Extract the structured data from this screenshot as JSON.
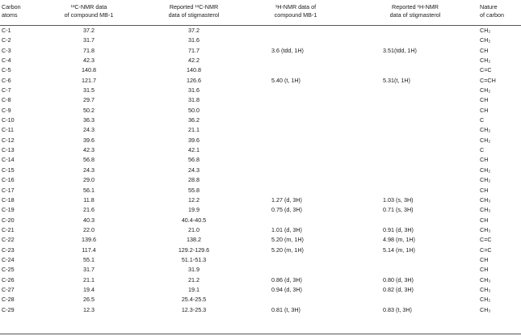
{
  "headers": {
    "col1": [
      "Carbon",
      "atoms"
    ],
    "col2": [
      "¹³C-NMR data",
      "of compound MB-1"
    ],
    "col3": [
      "Reported ¹³C-NMR",
      "data of stigmasterol"
    ],
    "col4": [
      "¹H-NMR data of",
      "compound MB-1"
    ],
    "col5": [
      "Reported ¹H-NMR",
      "data of stigmasterol"
    ],
    "col6": [
      "Nature",
      "of carbon"
    ]
  },
  "rows": [
    {
      "atom": "C-1",
      "mb13": "37.2",
      "rep13": "37.2",
      "mb1h": "",
      "rep1h": "",
      "nat": "CH₂"
    },
    {
      "atom": "C-2",
      "mb13": "31.7",
      "rep13": "31.6",
      "mb1h": "",
      "rep1h": "",
      "nat": "CH₂"
    },
    {
      "atom": "C-3",
      "mb13": "71.8",
      "rep13": "71.7",
      "mb1h": "3.6 (tdd, 1H)",
      "rep1h": "3.51(tdd, 1H)",
      "nat": "CH"
    },
    {
      "atom": "C-4",
      "mb13": "42.3",
      "rep13": "42.2",
      "mb1h": "",
      "rep1h": "",
      "nat": "CH₂"
    },
    {
      "atom": "C-5",
      "mb13": "140.8",
      "rep13": "140.8",
      "mb1h": "",
      "rep1h": "",
      "nat": "C=C"
    },
    {
      "atom": "C-6",
      "mb13": "121.7",
      "rep13": "126.6",
      "mb1h": "5.40 (t, 1H)",
      "rep1h": "5.31(t, 1H)",
      "nat": "C=CH"
    },
    {
      "atom": "C-7",
      "mb13": "31.5",
      "rep13": "31.6",
      "mb1h": "",
      "rep1h": "",
      "nat": "CH₂"
    },
    {
      "atom": "C-8",
      "mb13": "29.7",
      "rep13": "31.8",
      "mb1h": "",
      "rep1h": "",
      "nat": "CH"
    },
    {
      "atom": "C-9",
      "mb13": "50.2",
      "rep13": "50.0",
      "mb1h": "",
      "rep1h": "",
      "nat": "CH"
    },
    {
      "atom": "C-10",
      "mb13": "36.3",
      "rep13": "36.2",
      "mb1h": "",
      "rep1h": "",
      "nat": "C"
    },
    {
      "atom": "C-11",
      "mb13": "24.3",
      "rep13": "21.1",
      "mb1h": "",
      "rep1h": "",
      "nat": "CH₂"
    },
    {
      "atom": "C-12",
      "mb13": "39.6",
      "rep13": "39.6",
      "mb1h": "",
      "rep1h": "",
      "nat": "CH₂"
    },
    {
      "atom": "C-13",
      "mb13": "42.3",
      "rep13": "42.1",
      "mb1h": "",
      "rep1h": "",
      "nat": "C"
    },
    {
      "atom": "C-14",
      "mb13": "56.8",
      "rep13": "56.8",
      "mb1h": "",
      "rep1h": "",
      "nat": "CH"
    },
    {
      "atom": "C-15",
      "mb13": "24.3",
      "rep13": "24.3",
      "mb1h": "",
      "rep1h": "",
      "nat": "CH₂"
    },
    {
      "atom": "C-16",
      "mb13": "29.0",
      "rep13": "28.8",
      "mb1h": "",
      "rep1h": "",
      "nat": "CH₂"
    },
    {
      "atom": "C-17",
      "mb13": "56.1",
      "rep13": "55.8",
      "mb1h": "",
      "rep1h": "",
      "nat": "CH"
    },
    {
      "atom": "C-18",
      "mb13": "11.8",
      "rep13": "12.2",
      "mb1h": "1.27 (d, 3H)",
      "rep1h": "1.03 (s, 3H)",
      "nat": "CH₃"
    },
    {
      "atom": "C-19",
      "mb13": "21.6",
      "rep13": "19.9",
      "mb1h": "0.75 (d, 3H)",
      "rep1h": "0.71 (s, 3H)",
      "nat": "CH₃"
    },
    {
      "atom": "C-20",
      "mb13": "40.3",
      "rep13": "40.4-40.5",
      "mb1h": "",
      "rep1h": "",
      "nat": "CH"
    },
    {
      "atom": "C-21",
      "mb13": "22.0",
      "rep13": "21.0",
      "mb1h": "1.01 (d, 3H)",
      "rep1h": "0.91 (d, 3H)",
      "nat": "CH₃"
    },
    {
      "atom": "C-22",
      "mb13": "139.6",
      "rep13": "138.2",
      "mb1h": "5.20 (m, 1H)",
      "rep1h": "4.98 (m, 1H)",
      "nat": "C=C"
    },
    {
      "atom": "C-23",
      "mb13": "117.4",
      "rep13": "129.2-129.6",
      "mb1h": "5.20 (m, 1H)",
      "rep1h": "5.14 (m, 1H)",
      "nat": "C=C"
    },
    {
      "atom": "C-24",
      "mb13": "55.1",
      "rep13": "51.1-51.3",
      "mb1h": "",
      "rep1h": "",
      "nat": "CH"
    },
    {
      "atom": "C-25",
      "mb13": "31.7",
      "rep13": "31.9",
      "mb1h": "",
      "rep1h": "",
      "nat": "CH"
    },
    {
      "atom": "C-26",
      "mb13": "21.1",
      "rep13": "21.2",
      "mb1h": "0.86 (d, 3H)",
      "rep1h": "0.80 (d, 3H)",
      "nat": "CH₃"
    },
    {
      "atom": "C-27",
      "mb13": "19.4",
      "rep13": "19.1",
      "mb1h": "0.94 (d, 3H)",
      "rep1h": "0.82 (d, 3H)",
      "nat": "CH₃"
    },
    {
      "atom": "C-28",
      "mb13": "26.5",
      "rep13": "25.4-25.5",
      "mb1h": "",
      "rep1h": "",
      "nat": "CH₂"
    },
    {
      "atom": "C-29",
      "mb13": "12.3",
      "rep13": "12.3-25.3",
      "mb1h": "0.81 (t, 3H)",
      "rep1h": "0.83 (t, 3H)",
      "nat": "CH₃"
    }
  ]
}
